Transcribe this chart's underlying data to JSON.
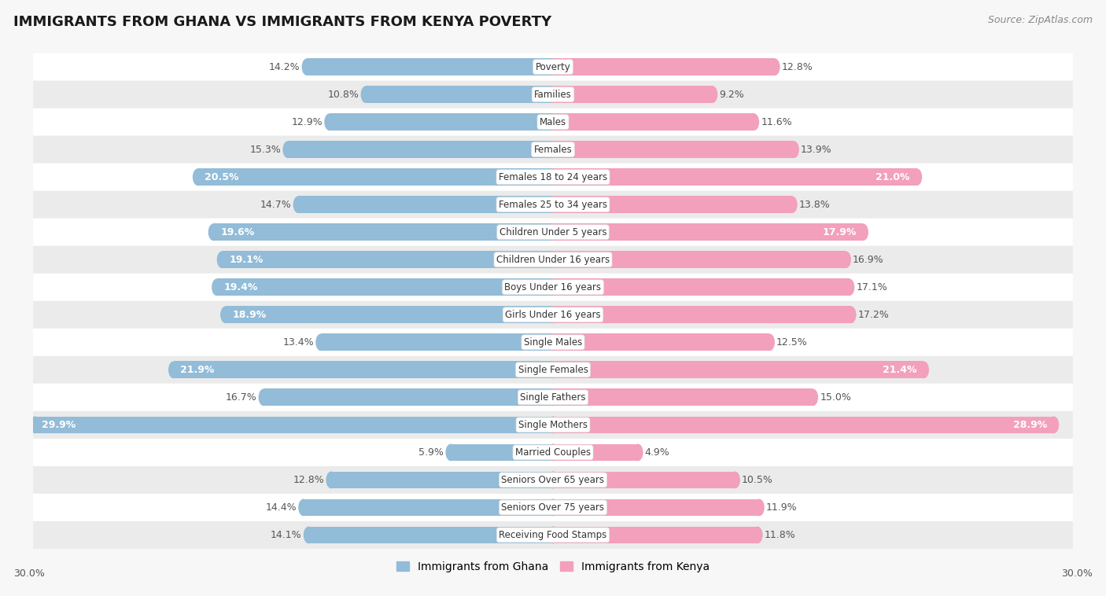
{
  "title": "IMMIGRANTS FROM GHANA VS IMMIGRANTS FROM KENYA POVERTY",
  "source": "Source: ZipAtlas.com",
  "categories": [
    "Poverty",
    "Families",
    "Males",
    "Females",
    "Females 18 to 24 years",
    "Females 25 to 34 years",
    "Children Under 5 years",
    "Children Under 16 years",
    "Boys Under 16 years",
    "Girls Under 16 years",
    "Single Males",
    "Single Females",
    "Single Fathers",
    "Single Mothers",
    "Married Couples",
    "Seniors Over 65 years",
    "Seniors Over 75 years",
    "Receiving Food Stamps"
  ],
  "ghana_values": [
    14.2,
    10.8,
    12.9,
    15.3,
    20.5,
    14.7,
    19.6,
    19.1,
    19.4,
    18.9,
    13.4,
    21.9,
    16.7,
    29.9,
    5.9,
    12.8,
    14.4,
    14.1
  ],
  "kenya_values": [
    12.8,
    9.2,
    11.6,
    13.9,
    21.0,
    13.8,
    17.9,
    16.9,
    17.1,
    17.2,
    12.5,
    21.4,
    15.0,
    28.9,
    4.9,
    10.5,
    11.9,
    11.8
  ],
  "ghana_color": "#92bcd8",
  "kenya_color": "#f2a0bb",
  "ghana_color_dark": "#6a9ec5",
  "kenya_color_dark": "#e8799a",
  "background_color": "#f7f7f7",
  "row_even_color": "#ffffff",
  "row_odd_color": "#ebebeb",
  "max_value": 30.0,
  "bar_height": 0.62,
  "legend_ghana": "Immigrants from Ghana",
  "legend_kenya": "Immigrants from Kenya",
  "label_threshold": 17.5
}
